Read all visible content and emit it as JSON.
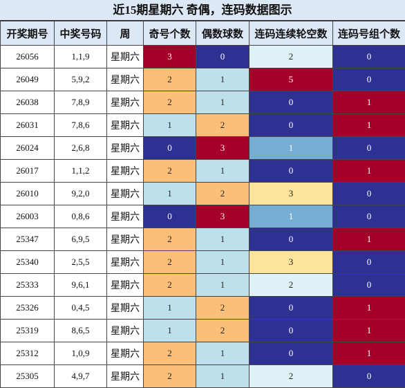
{
  "title": "近15期星期六 奇偶，连码数据图示",
  "headers": [
    "开奖期号",
    "中奖号码",
    "周",
    "奇号个数",
    "偶数球数",
    "连码连续轮空数",
    "连码号组个数"
  ],
  "colors": {
    "dr": "#a5002a",
    "nv": "#2e3192",
    "or": "#fcbf78",
    "lb": "#bde1ec",
    "vl": "#dff2f8",
    "md": "#74aed4",
    "yl": "#fde49a"
  },
  "rows": [
    {
      "issue": "26056",
      "numbers": "1,1,9",
      "week": "星期六",
      "odd": "3",
      "even": "0",
      "gap": "2",
      "groups": "0"
    },
    {
      "issue": "26049",
      "numbers": "5,9,2",
      "week": "星期六",
      "odd": "2",
      "even": "1",
      "gap": "5",
      "groups": "0"
    },
    {
      "issue": "26038",
      "numbers": "7,8,9",
      "week": "星期六",
      "odd": "2",
      "even": "1",
      "gap": "0",
      "groups": "1"
    },
    {
      "issue": "26031",
      "numbers": "7,8,6",
      "week": "星期六",
      "odd": "1",
      "even": "2",
      "gap": "0",
      "groups": "1"
    },
    {
      "issue": "26024",
      "numbers": "2,6,8",
      "week": "星期六",
      "odd": "0",
      "even": "3",
      "gap": "1",
      "groups": "0"
    },
    {
      "issue": "26017",
      "numbers": "1,1,2",
      "week": "星期六",
      "odd": "2",
      "even": "1",
      "gap": "0",
      "groups": "1"
    },
    {
      "issue": "26010",
      "numbers": "9,2,0",
      "week": "星期六",
      "odd": "1",
      "even": "2",
      "gap": "3",
      "groups": "0"
    },
    {
      "issue": "26003",
      "numbers": "0,8,6",
      "week": "星期六",
      "odd": "0",
      "even": "3",
      "gap": "1",
      "groups": "0"
    },
    {
      "issue": "25347",
      "numbers": "6,9,5",
      "week": "星期六",
      "odd": "2",
      "even": "1",
      "gap": "0",
      "groups": "1"
    },
    {
      "issue": "25340",
      "numbers": "2,5,5",
      "week": "星期六",
      "odd": "2",
      "even": "1",
      "gap": "3",
      "groups": "0"
    },
    {
      "issue": "25333",
      "numbers": "9,6,1",
      "week": "星期六",
      "odd": "2",
      "even": "1",
      "gap": "2",
      "groups": "0"
    },
    {
      "issue": "25326",
      "numbers": "0,4,5",
      "week": "星期六",
      "odd": "1",
      "even": "2",
      "gap": "0",
      "groups": "1"
    },
    {
      "issue": "25319",
      "numbers": "8,6,5",
      "week": "星期六",
      "odd": "1",
      "even": "2",
      "gap": "0",
      "groups": "1"
    },
    {
      "issue": "25312",
      "numbers": "1,0,9",
      "week": "星期六",
      "odd": "2",
      "even": "1",
      "gap": "0",
      "groups": "1"
    },
    {
      "issue": "25305",
      "numbers": "4,9,7",
      "week": "星期六",
      "odd": "2",
      "even": "1",
      "gap": "2",
      "groups": "0"
    }
  ]
}
